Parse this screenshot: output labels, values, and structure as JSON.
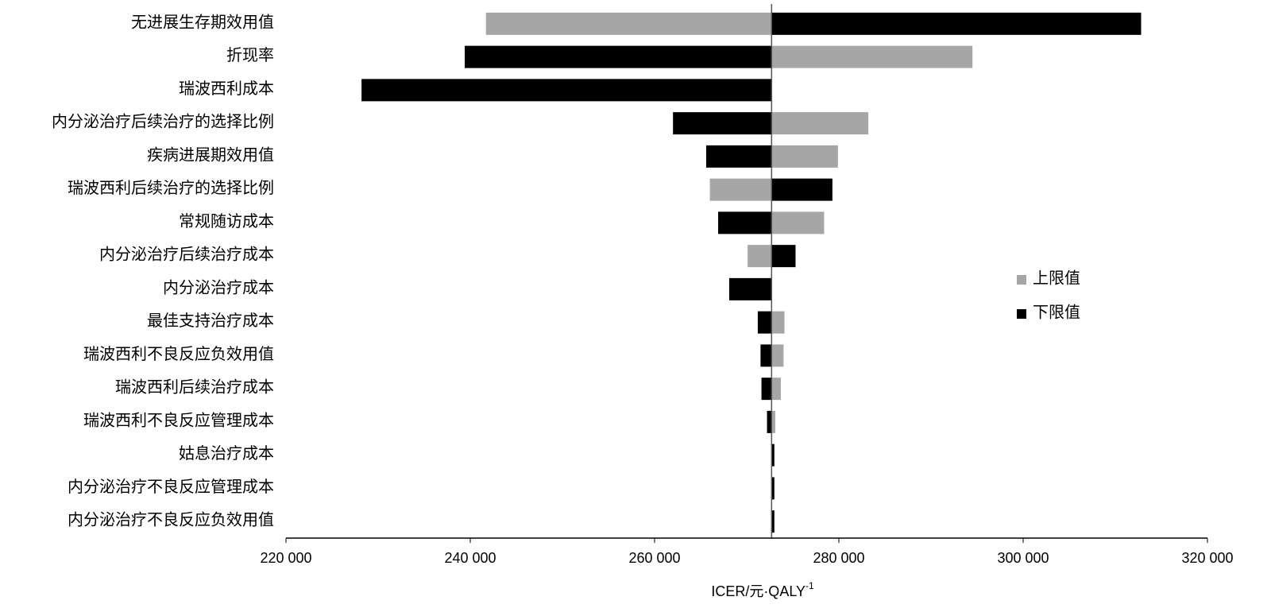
{
  "chart_data": {
    "type": "tornado",
    "categories": [
      "无进展生存期效用值",
      "折现率",
      "瑞波西利成本",
      "内分泌治疗后续治疗的选择比例",
      "疾病进展期效用值",
      "瑞波西利后续治疗的选择比例",
      "常规随访成本",
      "内分泌治疗后续治疗成本",
      "内分泌治疗成本",
      "最佳支持治疗成本",
      "瑞波西利不良反应负效用值",
      "瑞波西利后续治疗成本",
      "瑞波西利不良反应管理成本",
      "姑息治疗成本",
      "内分泌治疗不良反应管理成本",
      "内分泌治疗不良反应负效用值"
    ],
    "baseline": 272700,
    "series": [
      {
        "name": "上限值",
        "color": "#a6a6a6",
        "values": [
          241700,
          294500,
          272700,
          283200,
          279900,
          266000,
          278400,
          270100,
          272700,
          274100,
          274000,
          273700,
          273100,
          272700,
          272700,
          272700
        ]
      },
      {
        "name": "下限值",
        "color": "#000000",
        "values": [
          312800,
          239400,
          228200,
          262000,
          265600,
          279300,
          266900,
          275300,
          268100,
          271200,
          271500,
          271600,
          272200,
          273000,
          273000,
          273000
        ]
      }
    ],
    "xlabel": "ICER/元·QALY",
    "xlabel_sup": "-1",
    "xlim": [
      220000,
      320000
    ],
    "xticks": [
      {
        "value": 220000,
        "label": "220 000"
      },
      {
        "value": 240000,
        "label": "240 000"
      },
      {
        "value": 260000,
        "label": "260 000"
      },
      {
        "value": 280000,
        "label": "280 000"
      },
      {
        "value": 300000,
        "label": "300 000"
      },
      {
        "value": 320000,
        "label": "320 000"
      }
    ],
    "legend": "right"
  }
}
